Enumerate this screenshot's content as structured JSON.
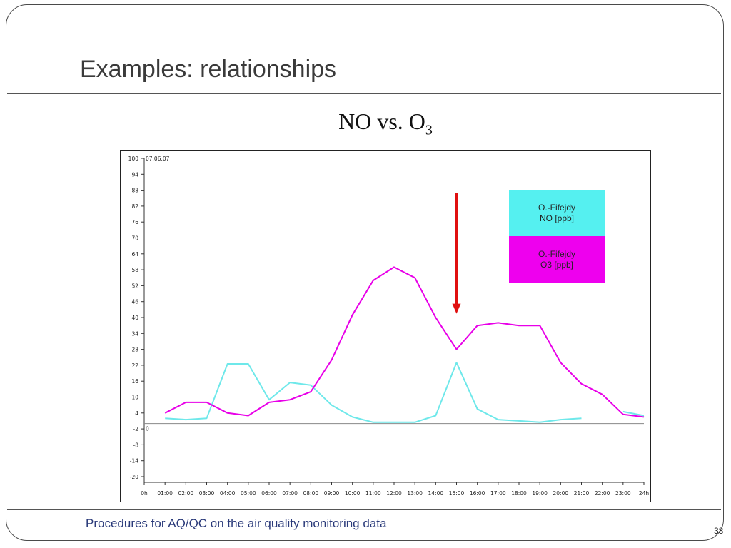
{
  "slide": {
    "title": "Examples: relationships",
    "subtitle_main": "NO vs. O",
    "subtitle_sub": "3",
    "footer": "Procedures for AQ/QC on the air quality monitoring data",
    "page_number": "38"
  },
  "chart_data": {
    "type": "line",
    "date_label": "07.06.07",
    "x_ticks": [
      "0h",
      "01:00",
      "02:00",
      "03:00",
      "04:00",
      "05:00",
      "06:00",
      "07:00",
      "08:00",
      "09:00",
      "10:00",
      "11:00",
      "12:00",
      "13:00",
      "14:00",
      "15:00",
      "16:00",
      "17:00",
      "18:00",
      "19:00",
      "20:00",
      "21:00",
      "22:00",
      "23:00",
      "24h"
    ],
    "y_ticks": [
      100,
      94,
      88,
      82,
      76,
      70,
      64,
      58,
      52,
      46,
      40,
      34,
      28,
      22,
      16,
      10,
      4,
      -2,
      -8,
      -14,
      -20
    ],
    "ylim": [
      -20,
      100
    ],
    "xlim": [
      0,
      24
    ],
    "zero_label": "0",
    "series": [
      {
        "name": "O.-Fifejdy\nNO [ppb]",
        "name_line1": "O.-Fifejdy",
        "name_line2": "NO [ppb]",
        "color": "#6ee8ea",
        "x": [
          1,
          2,
          3,
          4,
          5,
          6,
          7,
          8,
          9,
          10,
          11,
          12,
          13,
          14,
          15,
          16,
          17,
          18,
          19,
          20,
          21
        ],
        "y": [
          2,
          1.5,
          2,
          22.5,
          22.5,
          9,
          15.5,
          14.5,
          7,
          2.5,
          0.5,
          0.5,
          0.5,
          3,
          23,
          5.5,
          1.5,
          1,
          0.5,
          1.5,
          2
        ]
      },
      {
        "name": "O.-Fifejdy\nO3 [ppb]",
        "name_line1": "O.-Fifejdy",
        "name_line2": "O3 [ppb]",
        "color": "#e800e8",
        "x": [
          1,
          2,
          3,
          4,
          5,
          6,
          7,
          8,
          9,
          10,
          11,
          12,
          13,
          14,
          15,
          16,
          17,
          18,
          19,
          20,
          21,
          22,
          23,
          24
        ],
        "y": [
          4,
          8,
          8,
          4,
          3,
          8,
          9,
          12,
          24,
          41,
          54,
          59,
          55,
          40,
          28,
          37,
          38,
          37,
          37,
          23,
          15,
          11,
          3.5,
          2.5
        ]
      },
      {
        "name": "",
        "color": "#6ee8ea",
        "x": [
          23,
          24
        ],
        "y": [
          4.5,
          3
        ]
      }
    ],
    "legend_position": "top-right",
    "legend_colors": [
      "#55f0f0",
      "#ee00ee"
    ],
    "arrow": {
      "x": 15,
      "y_from": 87,
      "y_to": 42,
      "color": "#e01010"
    },
    "grid": false
  }
}
